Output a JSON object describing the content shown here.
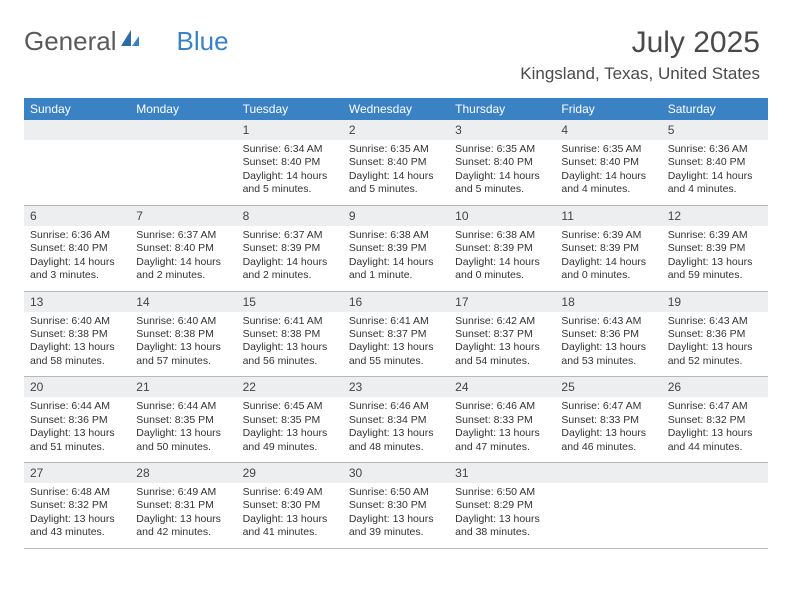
{
  "logo": {
    "text1": "General",
    "text2": "Blue"
  },
  "title": "July 2025",
  "location": "Kingsland, Texas, United States",
  "colors": {
    "header_bg": "#3b82c4",
    "daynum_bg": "#eceeef",
    "text": "#333333",
    "border": "#b8b8b8"
  },
  "typography": {
    "title_fontsize": 30,
    "location_fontsize": 17,
    "weekday_fontsize": 12,
    "daynum_fontsize": 12,
    "detail_fontsize": 10.5
  },
  "weekdays": [
    "Sunday",
    "Monday",
    "Tuesday",
    "Wednesday",
    "Thursday",
    "Friday",
    "Saturday"
  ],
  "weeks": [
    [
      {
        "n": "",
        "sr": "",
        "ss": "",
        "dl": ""
      },
      {
        "n": "",
        "sr": "",
        "ss": "",
        "dl": ""
      },
      {
        "n": "1",
        "sr": "6:34 AM",
        "ss": "8:40 PM",
        "dl": "14 hours and 5 minutes."
      },
      {
        "n": "2",
        "sr": "6:35 AM",
        "ss": "8:40 PM",
        "dl": "14 hours and 5 minutes."
      },
      {
        "n": "3",
        "sr": "6:35 AM",
        "ss": "8:40 PM",
        "dl": "14 hours and 5 minutes."
      },
      {
        "n": "4",
        "sr": "6:35 AM",
        "ss": "8:40 PM",
        "dl": "14 hours and 4 minutes."
      },
      {
        "n": "5",
        "sr": "6:36 AM",
        "ss": "8:40 PM",
        "dl": "14 hours and 4 minutes."
      }
    ],
    [
      {
        "n": "6",
        "sr": "6:36 AM",
        "ss": "8:40 PM",
        "dl": "14 hours and 3 minutes."
      },
      {
        "n": "7",
        "sr": "6:37 AM",
        "ss": "8:40 PM",
        "dl": "14 hours and 2 minutes."
      },
      {
        "n": "8",
        "sr": "6:37 AM",
        "ss": "8:39 PM",
        "dl": "14 hours and 2 minutes."
      },
      {
        "n": "9",
        "sr": "6:38 AM",
        "ss": "8:39 PM",
        "dl": "14 hours and 1 minute."
      },
      {
        "n": "10",
        "sr": "6:38 AM",
        "ss": "8:39 PM",
        "dl": "14 hours and 0 minutes."
      },
      {
        "n": "11",
        "sr": "6:39 AM",
        "ss": "8:39 PM",
        "dl": "14 hours and 0 minutes."
      },
      {
        "n": "12",
        "sr": "6:39 AM",
        "ss": "8:39 PM",
        "dl": "13 hours and 59 minutes."
      }
    ],
    [
      {
        "n": "13",
        "sr": "6:40 AM",
        "ss": "8:38 PM",
        "dl": "13 hours and 58 minutes."
      },
      {
        "n": "14",
        "sr": "6:40 AM",
        "ss": "8:38 PM",
        "dl": "13 hours and 57 minutes."
      },
      {
        "n": "15",
        "sr": "6:41 AM",
        "ss": "8:38 PM",
        "dl": "13 hours and 56 minutes."
      },
      {
        "n": "16",
        "sr": "6:41 AM",
        "ss": "8:37 PM",
        "dl": "13 hours and 55 minutes."
      },
      {
        "n": "17",
        "sr": "6:42 AM",
        "ss": "8:37 PM",
        "dl": "13 hours and 54 minutes."
      },
      {
        "n": "18",
        "sr": "6:43 AM",
        "ss": "8:36 PM",
        "dl": "13 hours and 53 minutes."
      },
      {
        "n": "19",
        "sr": "6:43 AM",
        "ss": "8:36 PM",
        "dl": "13 hours and 52 minutes."
      }
    ],
    [
      {
        "n": "20",
        "sr": "6:44 AM",
        "ss": "8:36 PM",
        "dl": "13 hours and 51 minutes."
      },
      {
        "n": "21",
        "sr": "6:44 AM",
        "ss": "8:35 PM",
        "dl": "13 hours and 50 minutes."
      },
      {
        "n": "22",
        "sr": "6:45 AM",
        "ss": "8:35 PM",
        "dl": "13 hours and 49 minutes."
      },
      {
        "n": "23",
        "sr": "6:46 AM",
        "ss": "8:34 PM",
        "dl": "13 hours and 48 minutes."
      },
      {
        "n": "24",
        "sr": "6:46 AM",
        "ss": "8:33 PM",
        "dl": "13 hours and 47 minutes."
      },
      {
        "n": "25",
        "sr": "6:47 AM",
        "ss": "8:33 PM",
        "dl": "13 hours and 46 minutes."
      },
      {
        "n": "26",
        "sr": "6:47 AM",
        "ss": "8:32 PM",
        "dl": "13 hours and 44 minutes."
      }
    ],
    [
      {
        "n": "27",
        "sr": "6:48 AM",
        "ss": "8:32 PM",
        "dl": "13 hours and 43 minutes."
      },
      {
        "n": "28",
        "sr": "6:49 AM",
        "ss": "8:31 PM",
        "dl": "13 hours and 42 minutes."
      },
      {
        "n": "29",
        "sr": "6:49 AM",
        "ss": "8:30 PM",
        "dl": "13 hours and 41 minutes."
      },
      {
        "n": "30",
        "sr": "6:50 AM",
        "ss": "8:30 PM",
        "dl": "13 hours and 39 minutes."
      },
      {
        "n": "31",
        "sr": "6:50 AM",
        "ss": "8:29 PM",
        "dl": "13 hours and 38 minutes."
      },
      {
        "n": "",
        "sr": "",
        "ss": "",
        "dl": ""
      },
      {
        "n": "",
        "sr": "",
        "ss": "",
        "dl": ""
      }
    ]
  ],
  "labels": {
    "sunrise": "Sunrise:",
    "sunset": "Sunset:",
    "daylight": "Daylight:"
  }
}
